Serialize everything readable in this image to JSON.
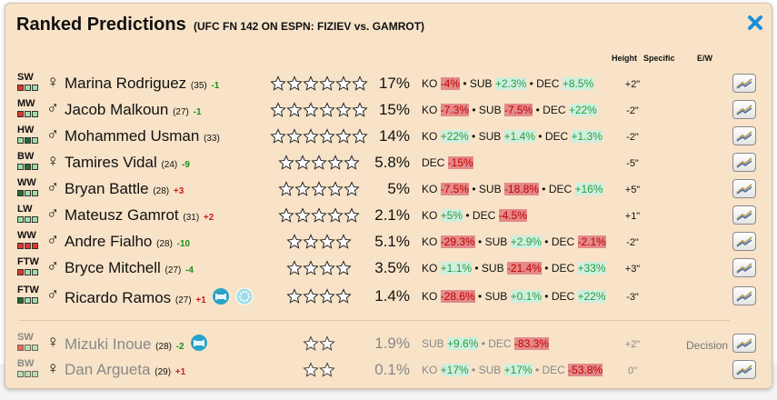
{
  "panel": {
    "title": "Ranked Predictions",
    "subtitle": "(UFC FN 142 ON ESPN: FIZIEV vs. GAMROT)",
    "close_icon": "close-x-icon"
  },
  "headers": {
    "height": "Height",
    "specific": "Specific",
    "ew": "E/W"
  },
  "colors": {
    "panel_bg": "#f8e3c8",
    "up": "#1a8f1a",
    "down": "#d01a1a",
    "close": "#1a8fd8"
  },
  "fighters": [
    {
      "division": "SW",
      "gender": "♀",
      "name": "Marina Rodriguez",
      "age": "(35)",
      "change": "-1",
      "change_dir": "up",
      "stars": 6,
      "pct": "17%",
      "odds": [
        {
          "label": "KO",
          "value": "-4%",
          "dir": "neg"
        },
        {
          "label": "SUB",
          "value": "+2.3%",
          "dir": "pos"
        },
        {
          "label": "DEC",
          "value": "+8.5%",
          "dir": "pos"
        }
      ],
      "height": "+2\"",
      "boxes": [
        "r",
        "g",
        "g"
      ]
    },
    {
      "division": "MW",
      "gender": "♂",
      "name": "Jacob Malkoun",
      "age": "(27)",
      "change": "-1",
      "change_dir": "up",
      "stars": 6,
      "pct": "15%",
      "odds": [
        {
          "label": "KO",
          "value": "-7.3%",
          "dir": "neg"
        },
        {
          "label": "SUB",
          "value": "-7.5%",
          "dir": "neg"
        },
        {
          "label": "DEC",
          "value": "+22%",
          "dir": "pos"
        }
      ],
      "height": "-2\"",
      "boxes": [
        "r",
        "g",
        "g"
      ]
    },
    {
      "division": "HW",
      "gender": "♂",
      "name": "Mohammed Usman",
      "age": "(33)",
      "change": "",
      "change_dir": "",
      "stars": 6,
      "pct": "14%",
      "odds": [
        {
          "label": "KO",
          "value": "+22%",
          "dir": "pos"
        },
        {
          "label": "SUB",
          "value": "+1.4%",
          "dir": "pos"
        },
        {
          "label": "DEC",
          "value": "+1.3%",
          "dir": "pos"
        }
      ],
      "height": "-2\"",
      "boxes": [
        "g",
        "d",
        "g"
      ]
    },
    {
      "division": "BW",
      "gender": "♀",
      "name": "Tamires Vidal",
      "age": "(24)",
      "change": "-9",
      "change_dir": "up",
      "stars": 5,
      "pct": "5.8%",
      "odds": [
        {
          "label": "DEC",
          "value": "-15%",
          "dir": "neg"
        }
      ],
      "height": "-5\"",
      "boxes": [
        "g",
        "d",
        "g"
      ]
    },
    {
      "division": "WW",
      "gender": "♂",
      "name": "Bryan Battle",
      "age": "(28)",
      "change": "+3",
      "change_dir": "dn",
      "stars": 5,
      "pct": "5%",
      "odds": [
        {
          "label": "KO",
          "value": "-7.5%",
          "dir": "neg"
        },
        {
          "label": "SUB",
          "value": "-18.8%",
          "dir": "neg"
        },
        {
          "label": "DEC",
          "value": "+16%",
          "dir": "pos"
        }
      ],
      "height": "+5\"",
      "boxes": [
        "d",
        "g",
        "g"
      ]
    },
    {
      "division": "LW",
      "gender": "♂",
      "name": "Mateusz Gamrot",
      "age": "(31)",
      "change": "+2",
      "change_dir": "dn",
      "stars": 5,
      "pct": "2.1%",
      "odds": [
        {
          "label": "KO",
          "value": "+5%",
          "dir": "pos"
        },
        {
          "label": "DEC",
          "value": "-4.5%",
          "dir": "neg"
        }
      ],
      "height": "+1\"",
      "boxes": [
        "g",
        "g",
        "g"
      ]
    },
    {
      "division": "WW",
      "gender": "♂",
      "name": "Andre Fialho",
      "age": "(28)",
      "change": "-10",
      "change_dir": "up",
      "stars": 4,
      "pct": "5.1%",
      "odds": [
        {
          "label": "KO",
          "value": "-29.3%",
          "dir": "neg"
        },
        {
          "label": "SUB",
          "value": "+2.9%",
          "dir": "pos"
        },
        {
          "label": "DEC",
          "value": "-2.1%",
          "dir": "neg"
        }
      ],
      "height": "-2\"",
      "boxes": [
        "r",
        "r",
        "r"
      ]
    },
    {
      "division": "FTW",
      "gender": "♂",
      "name": "Bryce Mitchell",
      "age": "(27)",
      "change": "-4",
      "change_dir": "up",
      "stars": 4,
      "pct": "3.5%",
      "odds": [
        {
          "label": "KO",
          "value": "+1.1%",
          "dir": "pos"
        },
        {
          "label": "SUB",
          "value": "-21.4%",
          "dir": "neg"
        },
        {
          "label": "DEC",
          "value": "+33%",
          "dir": "pos"
        }
      ],
      "height": "+3\"",
      "boxes": [
        "r",
        "g",
        "g"
      ]
    },
    {
      "division": "FTW",
      "gender": "♂",
      "name": "Ricardo Ramos",
      "age": "(27)",
      "change": "+1",
      "change_dir": "dn",
      "stars": 4,
      "pct": "1.4%",
      "odds": [
        {
          "label": "KO",
          "value": "-28.6%",
          "dir": "neg"
        },
        {
          "label": "SUB",
          "value": "+0.1%",
          "dir": "pos"
        },
        {
          "label": "DEC",
          "value": "+22%",
          "dir": "pos"
        }
      ],
      "height": "-3\"",
      "boxes": [
        "d",
        "g",
        "g"
      ],
      "extra_icons": [
        "couch-icon",
        "medal-icon"
      ]
    }
  ],
  "others": [
    {
      "division": "SW",
      "gender": "♀",
      "name": "Mizuki Inoue",
      "age": "(28)",
      "change": "-2",
      "change_dir": "up",
      "stars": 2,
      "pct": "1.9%",
      "odds": [
        {
          "label": "SUB",
          "value": "+9.6%",
          "dir": "pos"
        },
        {
          "label": "DEC",
          "value": "-83.3%",
          "dir": "neg"
        }
      ],
      "height": "+2\"",
      "decision": "Decision",
      "boxes": [
        "r",
        "g",
        "g"
      ],
      "extra_icons": [
        "couch-icon"
      ]
    },
    {
      "division": "BW",
      "gender": "♀",
      "name": "Dan Argueta",
      "age": "(29)",
      "change": "+1",
      "change_dir": "dn",
      "stars": 2,
      "pct": "0.1%",
      "odds": [
        {
          "label": "KO",
          "value": "+17%",
          "dir": "pos"
        },
        {
          "label": "SUB",
          "value": "+17%",
          "dir": "pos"
        },
        {
          "label": "DEC",
          "value": "-53.8%",
          "dir": "neg"
        }
      ],
      "height": "0\"",
      "boxes": [
        "g",
        "g",
        "g"
      ]
    }
  ]
}
